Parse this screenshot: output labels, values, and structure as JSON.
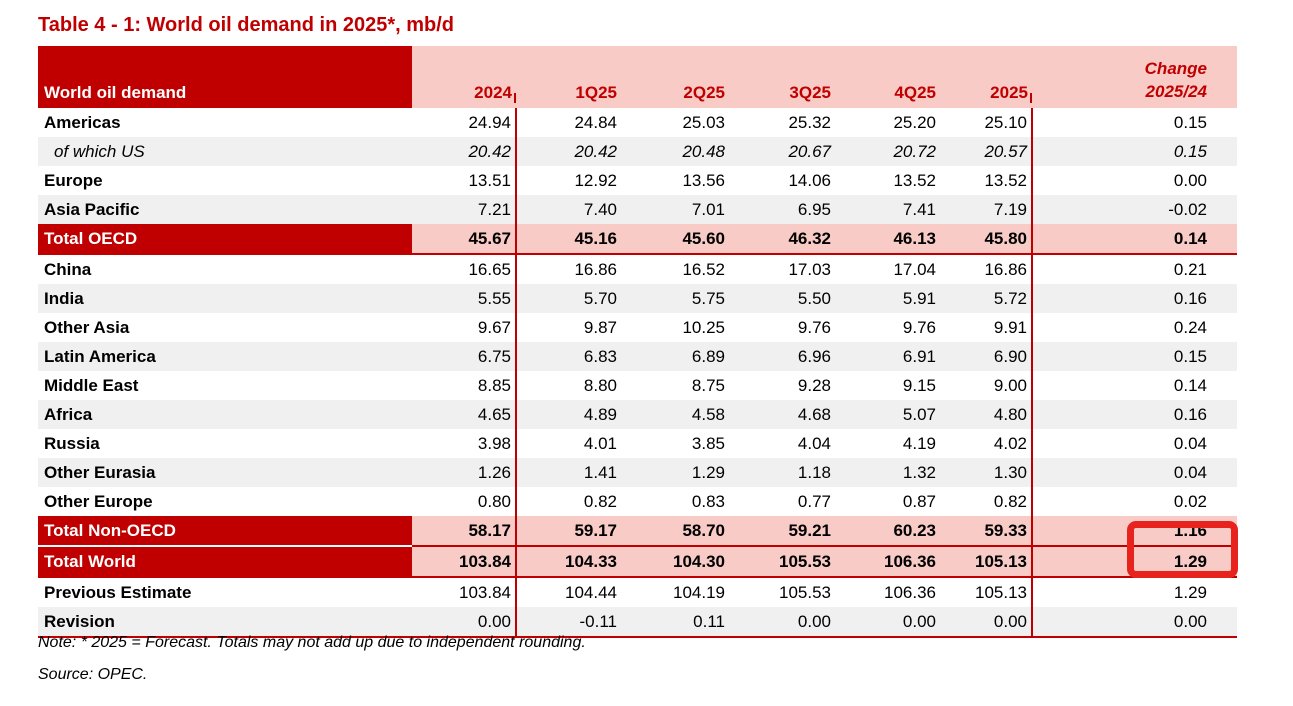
{
  "title": "Table 4 - 1: World oil demand in 2025*, mb/d",
  "note": "Note: * 2025 = Forecast. Totals may not add up due to independent rounding.",
  "source": "Source: OPEC.",
  "colors": {
    "dark_red": "#C00000",
    "pink_header": "#F8CBC6",
    "gray_row": "#F0F0F0",
    "annotation_red": "#E8231D"
  },
  "annotation": {
    "shape": "red-rectangle-highlight",
    "around_value": "1.29",
    "row": "Total World",
    "column": "Change 2025/24"
  },
  "table": {
    "header": {
      "label": "World oil demand",
      "cols": [
        "2024",
        "1Q25",
        "2Q25",
        "3Q25",
        "4Q25",
        "2025"
      ],
      "change_line1": "Change",
      "change_line2": "2025/24"
    },
    "rows": [
      {
        "label": "Americas",
        "variant": "plain",
        "shade": "white",
        "values": [
          "24.94",
          "24.84",
          "25.03",
          "25.32",
          "25.20",
          "25.10"
        ],
        "change": "0.15"
      },
      {
        "label": "of which US",
        "variant": "sub",
        "shade": "gray",
        "values": [
          "20.42",
          "20.42",
          "20.48",
          "20.67",
          "20.72",
          "20.57"
        ],
        "change": "0.15"
      },
      {
        "label": "Europe",
        "variant": "plain",
        "shade": "white",
        "values": [
          "13.51",
          "12.92",
          "13.56",
          "14.06",
          "13.52",
          "13.52"
        ],
        "change": "0.00"
      },
      {
        "label": "Asia Pacific",
        "variant": "plain",
        "shade": "gray",
        "values": [
          "7.21",
          "7.40",
          "7.01",
          "6.95",
          "7.41",
          "7.19"
        ],
        "change": "-0.02"
      },
      {
        "label": "Total OECD",
        "variant": "total",
        "shade": "white",
        "values": [
          "45.67",
          "45.16",
          "45.60",
          "46.32",
          "46.13",
          "45.80"
        ],
        "change": "0.14",
        "rule": true
      },
      {
        "label": "China",
        "variant": "plain",
        "shade": "white",
        "values": [
          "16.65",
          "16.86",
          "16.52",
          "17.03",
          "17.04",
          "16.86"
        ],
        "change": "0.21"
      },
      {
        "label": "India",
        "variant": "plain",
        "shade": "gray",
        "values": [
          "5.55",
          "5.70",
          "5.75",
          "5.50",
          "5.91",
          "5.72"
        ],
        "change": "0.16"
      },
      {
        "label": "Other Asia",
        "variant": "plain",
        "shade": "white",
        "values": [
          "9.67",
          "9.87",
          "10.25",
          "9.76",
          "9.76",
          "9.91"
        ],
        "change": "0.24"
      },
      {
        "label": "Latin America",
        "variant": "plain",
        "shade": "gray",
        "values": [
          "6.75",
          "6.83",
          "6.89",
          "6.96",
          "6.91",
          "6.90"
        ],
        "change": "0.15"
      },
      {
        "label": "Middle East",
        "variant": "plain",
        "shade": "white",
        "values": [
          "8.85",
          "8.80",
          "8.75",
          "9.28",
          "9.15",
          "9.00"
        ],
        "change": "0.14"
      },
      {
        "label": "Africa",
        "variant": "plain",
        "shade": "gray",
        "values": [
          "4.65",
          "4.89",
          "4.58",
          "4.68",
          "5.07",
          "4.80"
        ],
        "change": "0.16"
      },
      {
        "label": "Russia",
        "variant": "plain",
        "shade": "white",
        "values": [
          "3.98",
          "4.01",
          "3.85",
          "4.04",
          "4.19",
          "4.02"
        ],
        "change": "0.04"
      },
      {
        "label": "Other Eurasia",
        "variant": "plain",
        "shade": "gray",
        "values": [
          "1.26",
          "1.41",
          "1.29",
          "1.18",
          "1.32",
          "1.30"
        ],
        "change": "0.04"
      },
      {
        "label": "Other Europe",
        "variant": "plain",
        "shade": "white",
        "values": [
          "0.80",
          "0.82",
          "0.83",
          "0.77",
          "0.87",
          "0.82"
        ],
        "change": "0.02"
      },
      {
        "label": "Total Non-OECD",
        "variant": "total",
        "shade": "white",
        "values": [
          "58.17",
          "59.17",
          "58.70",
          "59.21",
          "60.23",
          "59.33"
        ],
        "change": "1.16",
        "rule": true,
        "labelgap": true
      },
      {
        "label": "Total World",
        "variant": "total",
        "shade": "white",
        "values": [
          "103.84",
          "104.33",
          "104.30",
          "105.53",
          "106.36",
          "105.13"
        ],
        "change": "1.29",
        "rule": true
      },
      {
        "label": "Previous Estimate",
        "variant": "plain",
        "shade": "white",
        "values": [
          "103.84",
          "104.44",
          "104.19",
          "105.53",
          "106.36",
          "105.13"
        ],
        "change": "1.29"
      },
      {
        "label": "Revision",
        "variant": "plain",
        "shade": "gray",
        "values": [
          "0.00",
          "-0.11",
          "0.11",
          "0.00",
          "0.00",
          "0.00"
        ],
        "change": "0.00",
        "rule": true
      }
    ]
  }
}
